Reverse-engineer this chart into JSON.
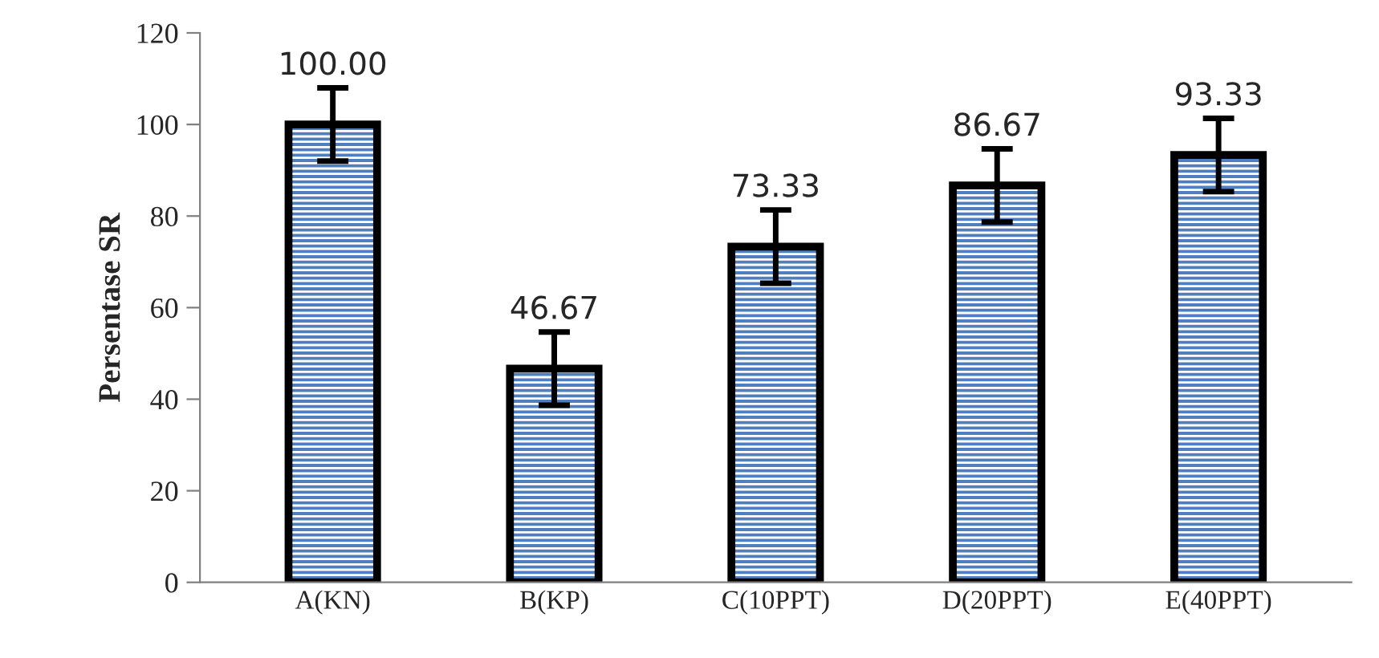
{
  "chart_data": {
    "type": "bar",
    "ylabel": "Persentase SR",
    "categories": [
      "A(KN)",
      "B(KP)",
      "C(10PPT)",
      "D(20PPT)",
      "E(40PPT)"
    ],
    "values": [
      100.0,
      46.67,
      73.33,
      86.67,
      93.33
    ],
    "value_labels": [
      "100.00",
      "46.67",
      "73.33",
      "86.67",
      "93.33"
    ],
    "errors": [
      8,
      8,
      8,
      8,
      8
    ],
    "color": "#4f7fbf",
    "ylim": [
      0,
      120
    ],
    "yticks": [
      0,
      20,
      40,
      60,
      80,
      100,
      120
    ],
    "grid": false,
    "legend": false
  }
}
